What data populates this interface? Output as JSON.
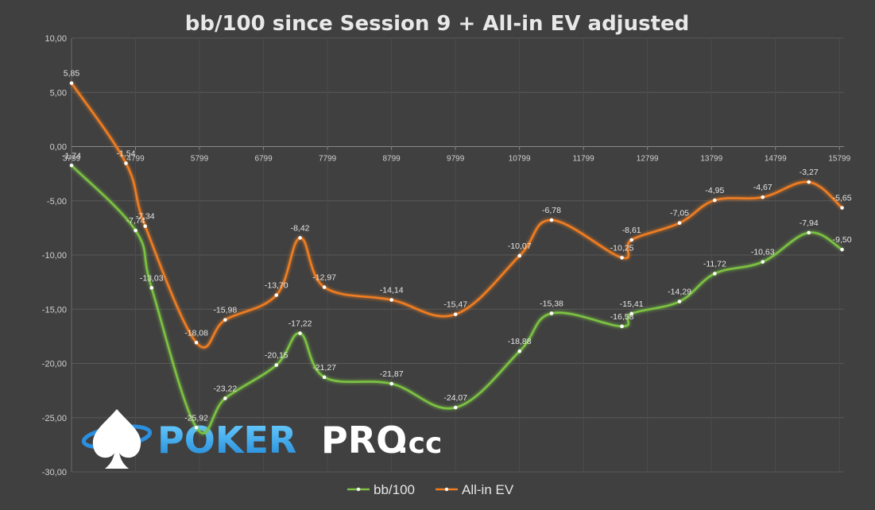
{
  "chart_data": {
    "type": "line",
    "title": "bb/100 since Session 9 + All-in EV adjusted",
    "ylim": [
      -30,
      10
    ],
    "y_ticks": [
      "10,00",
      "5,00",
      "0,00",
      "-5,00",
      "-10,00",
      "-15,00",
      "-20,00",
      "-25,00",
      "-30,00"
    ],
    "x_tick_labels": [
      "3799",
      "4799",
      "5799",
      "6799",
      "7799",
      "8799",
      "9799",
      "10799",
      "11799",
      "12799",
      "13799",
      "14799",
      "15799"
    ],
    "x_tick_values": [
      3799,
      4799,
      5799,
      6799,
      7799,
      8799,
      9799,
      10799,
      11799,
      12799,
      13799,
      14799,
      15799
    ],
    "grid": true,
    "legend_position": "bottom",
    "series": [
      {
        "name": "bb/100",
        "color": "#7cc242",
        "x": [
          3799,
          4800,
          5050,
          5750,
          6200,
          7000,
          7370,
          7750,
          8800,
          9800,
          10800,
          11300,
          12400,
          12550,
          13300,
          13850,
          14600,
          15320,
          15840
        ],
        "values": [
          -1.74,
          -7.74,
          -13.03,
          -25.92,
          -23.22,
          -20.15,
          -17.22,
          -21.27,
          -21.87,
          -24.07,
          -18.88,
          -15.38,
          -16.58,
          -15.41,
          -14.29,
          -11.72,
          -10.63,
          -7.94,
          -9.5
        ],
        "labels": [
          "-1,74",
          "-7,74",
          "-13,03",
          "-25,92",
          "-23,22",
          "-20,15",
          "-17,22",
          "-21,27",
          "-21,87",
          "-24,07",
          "-18,88",
          "-15,38",
          "-16,58",
          "-15,41",
          "-14,29",
          "-11,72",
          "-10,63",
          "-7,94",
          "-9,50"
        ]
      },
      {
        "name": "All-in EV",
        "color": "#ef7d22",
        "x": [
          3799,
          4650,
          4950,
          5750,
          6200,
          7000,
          7370,
          7750,
          8800,
          9800,
          10800,
          11300,
          12400,
          12550,
          13300,
          13850,
          14600,
          15320,
          15840
        ],
        "values": [
          5.85,
          -1.54,
          -7.34,
          -18.08,
          -15.98,
          -13.7,
          -8.42,
          -12.97,
          -14.14,
          -15.47,
          -10.07,
          -6.78,
          -10.25,
          -8.61,
          -7.05,
          -4.95,
          -4.67,
          -3.27,
          -5.65
        ],
        "labels": [
          "5,85",
          "-1,54",
          "-7,34",
          "-18,08",
          "-15,98",
          "-13,70",
          "-8,42",
          "-12,97",
          "-14,14",
          "-15,47",
          "-10,07",
          "-6,78",
          "-10,25",
          "-8,61",
          "-7,05",
          "-4,95",
          "-4,67",
          "-3,27",
          "-5,65"
        ]
      }
    ]
  },
  "logo": {
    "text_part1": "POKER",
    "text_part2": "PRO",
    "text_part3": ".cc",
    "icon": "spade-icon"
  }
}
